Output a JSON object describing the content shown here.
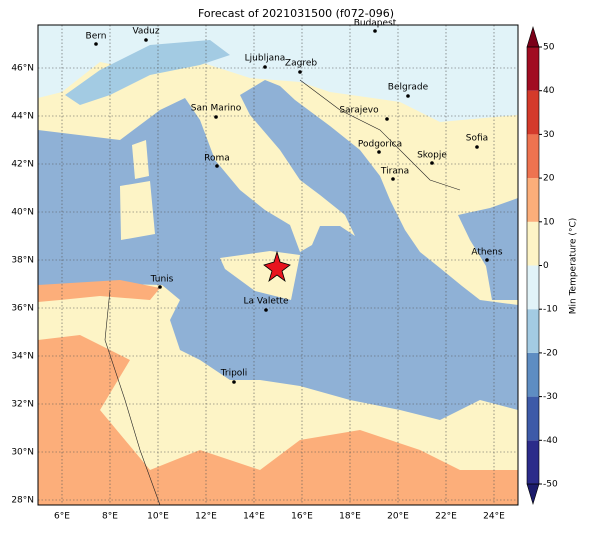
{
  "title": "Forecast of 2021031500 (f072-096)",
  "lon_ticks": [
    {
      "value": 6,
      "label": "6°E"
    },
    {
      "value": 8,
      "label": "8°E"
    },
    {
      "value": 10,
      "label": "10°E"
    },
    {
      "value": 12,
      "label": "12°E"
    },
    {
      "value": 14,
      "label": "14°E"
    },
    {
      "value": 16,
      "label": "16°E"
    },
    {
      "value": 18,
      "label": "18°E"
    },
    {
      "value": 20,
      "label": "20°E"
    },
    {
      "value": 22,
      "label": "22°E"
    },
    {
      "value": 24,
      "label": "24°E"
    }
  ],
  "lat_ticks": [
    {
      "value": 46,
      "label": "46°N"
    },
    {
      "value": 44,
      "label": "44°N"
    },
    {
      "value": 42,
      "label": "42°N"
    },
    {
      "value": 40,
      "label": "40°N"
    },
    {
      "value": 38,
      "label": "38°N"
    },
    {
      "value": 36,
      "label": "36°N"
    },
    {
      "value": 34,
      "label": "34°N"
    },
    {
      "value": 32,
      "label": "32°N"
    },
    {
      "value": 30,
      "label": "30°N"
    },
    {
      "value": 28,
      "label": "28°N"
    }
  ],
  "cities": [
    "Bern",
    "Vaduz",
    "Budapest",
    "Ljubljana",
    "Zagreb",
    "Belgrade",
    "San Marino",
    "Sarajevo",
    "Sofia",
    "Podgorica",
    "Skopje",
    "Roma",
    "Tirana",
    "Athens",
    "Tunis",
    "La Valette",
    "Tripoli"
  ],
  "colorbar": {
    "label": "Min Temperature (°C)",
    "lim": [
      -50,
      50
    ],
    "ticks": [
      -50,
      -40,
      -30,
      -20,
      -10,
      0,
      10,
      20,
      30,
      40,
      50
    ],
    "colors": [
      "#2b2b8a",
      "#3d5aa8",
      "#5e8dc2",
      "#a3cbe3",
      "#e1f3f8",
      "#fdf4c6",
      "#fcae7a",
      "#ee7350",
      "#d43a2b",
      "#a10d22"
    ],
    "under_color": "#1b1b6b",
    "over_color": "#7a0018"
  }
}
